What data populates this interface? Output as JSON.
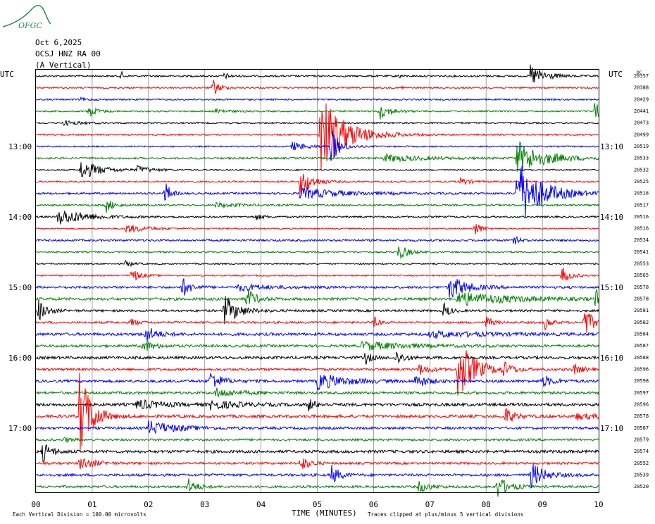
{
  "logo": {
    "text": "OFGC",
    "color": "#2a8a5a"
  },
  "header": {
    "date": "Oct 6,2025",
    "station": "OCSJ HNZ RA 00",
    "component": "(A Vertical)"
  },
  "left_axis_title": "UTC",
  "right_axis_title": "UTC",
  "right_col_header": "DC",
  "x_axis_label": "TIME (MINUTES)",
  "footer": {
    "division_note": "Each Vertical Division =  100.00 microvolts",
    "clip_note": "Traces clipped at plus/minus 5 vertical divisions"
  },
  "colors": {
    "cycle": [
      "#000000",
      "#ff0000",
      "#0000ff",
      "#008000"
    ],
    "grid": "#8c8c8c"
  },
  "chart_data": {
    "type": "line",
    "title": "Oct 6,2025 OCSJ HNZ RA 00 (A Vertical)",
    "xlabel": "TIME (MINUTES)",
    "x_ticks": [
      "00",
      "01",
      "02",
      "03",
      "04",
      "05",
      "06",
      "07",
      "08",
      "09",
      "10"
    ],
    "xlim": [
      0,
      10
    ],
    "trace_count": 36,
    "left_time_labels": [
      {
        "row": 6,
        "label": "13:00"
      },
      {
        "row": 12,
        "label": "14:00"
      },
      {
        "row": 18,
        "label": "15:00"
      },
      {
        "row": 24,
        "label": "16:00"
      },
      {
        "row": 30,
        "label": "17:00"
      }
    ],
    "right_time_labels": [
      {
        "row": 6,
        "label": "13:10"
      },
      {
        "row": 12,
        "label": "14:10"
      },
      {
        "row": 18,
        "label": "15:10"
      },
      {
        "row": 24,
        "label": "16:10"
      },
      {
        "row": 30,
        "label": "17:10"
      }
    ],
    "dc_offsets": [
      20357,
      20388,
      20429,
      20441,
      20473,
      20499,
      20519,
      20533,
      20532,
      20525,
      20518,
      20517,
      20516,
      20516,
      20534,
      20541,
      20553,
      20565,
      20578,
      20578,
      20581,
      20582,
      20584,
      20587,
      20588,
      20596,
      20598,
      20597,
      20596,
      20578,
      20587,
      20579,
      20574,
      20552,
      20539,
      20520
    ],
    "events": [
      {
        "row": 0,
        "minute": 1.52,
        "amp": 6,
        "dur": 0.08
      },
      {
        "row": 0,
        "minute": 3.35,
        "amp": 4,
        "dur": 0.2
      },
      {
        "row": 0,
        "minute": 6.45,
        "amp": 3,
        "dur": 0.1
      },
      {
        "row": 0,
        "minute": 8.78,
        "amp": 17,
        "dur": 0.5
      },
      {
        "row": 1,
        "minute": 3.15,
        "amp": 12,
        "dur": 0.25
      },
      {
        "row": 1,
        "minute": 6.5,
        "amp": 4,
        "dur": 0.05
      },
      {
        "row": 2,
        "minute": 0.8,
        "amp": 2,
        "dur": 0.3
      },
      {
        "row": 3,
        "minute": 0.95,
        "amp": 8,
        "dur": 0.3
      },
      {
        "row": 3,
        "minute": 3.2,
        "amp": 4,
        "dur": 0.4
      },
      {
        "row": 3,
        "minute": 6.1,
        "amp": 12,
        "dur": 0.4
      },
      {
        "row": 3,
        "minute": 9.93,
        "amp": 14,
        "dur": 0.25
      },
      {
        "row": 4,
        "minute": 0.5,
        "amp": 3,
        "dur": 0.6
      },
      {
        "row": 5,
        "minute": 5.05,
        "amp": 60,
        "dur": 0.9
      },
      {
        "row": 6,
        "minute": 5.25,
        "amp": 26,
        "dur": 0.3
      },
      {
        "row": 6,
        "minute": 4.55,
        "amp": 6,
        "dur": 0.6
      },
      {
        "row": 7,
        "minute": 8.55,
        "amp": 24,
        "dur": 1.0
      },
      {
        "row": 7,
        "minute": 6.2,
        "amp": 5,
        "dur": 1.4
      },
      {
        "row": 8,
        "minute": 0.8,
        "amp": 14,
        "dur": 0.7
      },
      {
        "row": 8,
        "minute": 1.8,
        "amp": 5,
        "dur": 0.5
      },
      {
        "row": 9,
        "minute": 4.7,
        "amp": 22,
        "dur": 0.4
      },
      {
        "row": 9,
        "minute": 7.55,
        "amp": 6,
        "dur": 0.3
      },
      {
        "row": 10,
        "minute": 2.3,
        "amp": 16,
        "dur": 0.2
      },
      {
        "row": 10,
        "minute": 4.7,
        "amp": 8,
        "dur": 1.5
      },
      {
        "row": 10,
        "minute": 8.55,
        "amp": 48,
        "dur": 0.9
      },
      {
        "row": 11,
        "minute": 1.25,
        "amp": 10,
        "dur": 0.25
      },
      {
        "row": 11,
        "minute": 3.2,
        "amp": 3,
        "dur": 0.8
      },
      {
        "row": 12,
        "minute": 0.4,
        "amp": 12,
        "dur": 1.0
      },
      {
        "row": 12,
        "minute": 3.9,
        "amp": 4,
        "dur": 0.3
      },
      {
        "row": 13,
        "minute": 1.6,
        "amp": 6,
        "dur": 0.8
      },
      {
        "row": 13,
        "minute": 7.8,
        "amp": 10,
        "dur": 0.25
      },
      {
        "row": 14,
        "minute": 8.5,
        "amp": 6,
        "dur": 0.2
      },
      {
        "row": 15,
        "minute": 6.45,
        "amp": 12,
        "dur": 0.3
      },
      {
        "row": 16,
        "minute": 1.6,
        "amp": 6,
        "dur": 0.2
      },
      {
        "row": 17,
        "minute": 1.7,
        "amp": 10,
        "dur": 0.3
      },
      {
        "row": 17,
        "minute": 9.35,
        "amp": 12,
        "dur": 0.3
      },
      {
        "row": 18,
        "minute": 2.6,
        "amp": 14,
        "dur": 0.3
      },
      {
        "row": 18,
        "minute": 3.6,
        "amp": 5,
        "dur": 1.0
      },
      {
        "row": 18,
        "minute": 7.35,
        "amp": 18,
        "dur": 0.6
      },
      {
        "row": 19,
        "minute": 3.75,
        "amp": 16,
        "dur": 0.3
      },
      {
        "row": 19,
        "minute": 7.5,
        "amp": 10,
        "dur": 1.8
      },
      {
        "row": 19,
        "minute": 9.95,
        "amp": 14,
        "dur": 0.2
      },
      {
        "row": 20,
        "minute": 0.05,
        "amp": 16,
        "dur": 0.3
      },
      {
        "row": 20,
        "minute": 3.35,
        "amp": 22,
        "dur": 0.5
      },
      {
        "row": 20,
        "minute": 7.25,
        "amp": 12,
        "dur": 0.2
      },
      {
        "row": 21,
        "minute": 1.7,
        "amp": 6,
        "dur": 0.2
      },
      {
        "row": 21,
        "minute": 6.0,
        "amp": 8,
        "dur": 0.2
      },
      {
        "row": 21,
        "minute": 8.0,
        "amp": 10,
        "dur": 0.2
      },
      {
        "row": 21,
        "minute": 9.05,
        "amp": 10,
        "dur": 0.2
      },
      {
        "row": 21,
        "minute": 9.75,
        "amp": 22,
        "dur": 0.3
      },
      {
        "row": 22,
        "minute": 1.95,
        "amp": 12,
        "dur": 0.4
      },
      {
        "row": 22,
        "minute": 7.0,
        "amp": 4,
        "dur": 2.0
      },
      {
        "row": 23,
        "minute": 1.9,
        "amp": 8,
        "dur": 0.4
      },
      {
        "row": 23,
        "minute": 5.8,
        "amp": 6,
        "dur": 1.6
      },
      {
        "row": 24,
        "minute": 5.85,
        "amp": 10,
        "dur": 0.2
      },
      {
        "row": 24,
        "minute": 6.4,
        "amp": 10,
        "dur": 0.3
      },
      {
        "row": 25,
        "minute": 7.5,
        "amp": 44,
        "dur": 0.6
      },
      {
        "row": 25,
        "minute": 8.3,
        "amp": 10,
        "dur": 0.3
      },
      {
        "row": 25,
        "minute": 9.55,
        "amp": 8,
        "dur": 0.3
      },
      {
        "row": 25,
        "minute": 6.8,
        "amp": 8,
        "dur": 0.4
      },
      {
        "row": 26,
        "minute": 3.1,
        "amp": 14,
        "dur": 0.4
      },
      {
        "row": 26,
        "minute": 5.0,
        "amp": 12,
        "dur": 1.0
      },
      {
        "row": 26,
        "minute": 6.75,
        "amp": 10,
        "dur": 0.4
      },
      {
        "row": 26,
        "minute": 9.0,
        "amp": 8,
        "dur": 0.4
      },
      {
        "row": 27,
        "minute": 3.2,
        "amp": 6,
        "dur": 0.8
      },
      {
        "row": 28,
        "minute": 1.8,
        "amp": 7,
        "dur": 0.8
      },
      {
        "row": 28,
        "minute": 3.1,
        "amp": 6,
        "dur": 1.0
      },
      {
        "row": 28,
        "minute": 4.85,
        "amp": 10,
        "dur": 0.2
      },
      {
        "row": 29,
        "minute": 0.78,
        "amp": 70,
        "dur": 0.4
      },
      {
        "row": 29,
        "minute": 8.35,
        "amp": 12,
        "dur": 0.3
      },
      {
        "row": 29,
        "minute": 9.6,
        "amp": 4,
        "dur": 0.8
      },
      {
        "row": 30,
        "minute": 2.0,
        "amp": 10,
        "dur": 1.0
      },
      {
        "row": 31,
        "minute": 0.5,
        "amp": 3,
        "dur": 0.3
      },
      {
        "row": 32,
        "minute": 0.12,
        "amp": 14,
        "dur": 0.3
      },
      {
        "row": 33,
        "minute": 0.78,
        "amp": 10,
        "dur": 0.5
      },
      {
        "row": 33,
        "minute": 4.7,
        "amp": 12,
        "dur": 0.3
      },
      {
        "row": 34,
        "minute": 5.25,
        "amp": 14,
        "dur": 0.3
      },
      {
        "row": 34,
        "minute": 8.8,
        "amp": 18,
        "dur": 0.5
      },
      {
        "row": 35,
        "minute": 2.7,
        "amp": 12,
        "dur": 0.3
      },
      {
        "row": 35,
        "minute": 6.8,
        "amp": 8,
        "dur": 0.4
      },
      {
        "row": 35,
        "minute": 8.2,
        "amp": 16,
        "dur": 0.4
      }
    ]
  }
}
